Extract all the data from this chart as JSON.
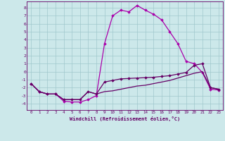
{
  "x": [
    0,
    1,
    2,
    3,
    4,
    5,
    6,
    7,
    8,
    9,
    10,
    11,
    12,
    13,
    14,
    15,
    16,
    17,
    18,
    19,
    20,
    21,
    22,
    23
  ],
  "curve1": [
    -1.5,
    -2.5,
    -2.8,
    -2.8,
    -3.7,
    -3.8,
    -3.8,
    -3.5,
    -3.0,
    3.5,
    7.0,
    7.7,
    7.5,
    8.3,
    7.7,
    7.2,
    6.5,
    5.0,
    3.5,
    1.3,
    1.0,
    -0.1,
    -2.2,
    -2.3
  ],
  "curve2": [
    -1.5,
    -2.5,
    -2.8,
    -2.8,
    -3.5,
    -3.5,
    -3.5,
    -2.5,
    -2.8,
    -1.3,
    -1.1,
    -0.9,
    -0.85,
    -0.8,
    -0.75,
    -0.7,
    -0.6,
    -0.5,
    -0.3,
    -0.1,
    0.8,
    1.0,
    -2.0,
    -2.2
  ],
  "curve3": [
    -1.5,
    -2.5,
    -2.8,
    -2.8,
    -3.5,
    -3.5,
    -3.5,
    -2.5,
    -2.8,
    -2.5,
    -2.4,
    -2.2,
    -2.0,
    -1.8,
    -1.7,
    -1.5,
    -1.3,
    -1.1,
    -0.8,
    -0.5,
    -0.2,
    0.0,
    -2.0,
    -2.2
  ],
  "background_color": "#cce8ea",
  "grid_color": "#a0c8cc",
  "line_color1": "#aa00aa",
  "line_color2": "#660066",
  "xlabel": "Windchill (Refroidissement éolien,°C)",
  "ylim": [
    -4.8,
    8.8
  ],
  "xlim": [
    -0.5,
    23.5
  ],
  "yticks": [
    -4,
    -3,
    -2,
    -1,
    0,
    1,
    2,
    3,
    4,
    5,
    6,
    7,
    8
  ],
  "xticks": [
    0,
    1,
    2,
    3,
    4,
    5,
    6,
    7,
    8,
    9,
    10,
    11,
    12,
    13,
    14,
    15,
    16,
    17,
    18,
    19,
    20,
    21,
    22,
    23
  ]
}
